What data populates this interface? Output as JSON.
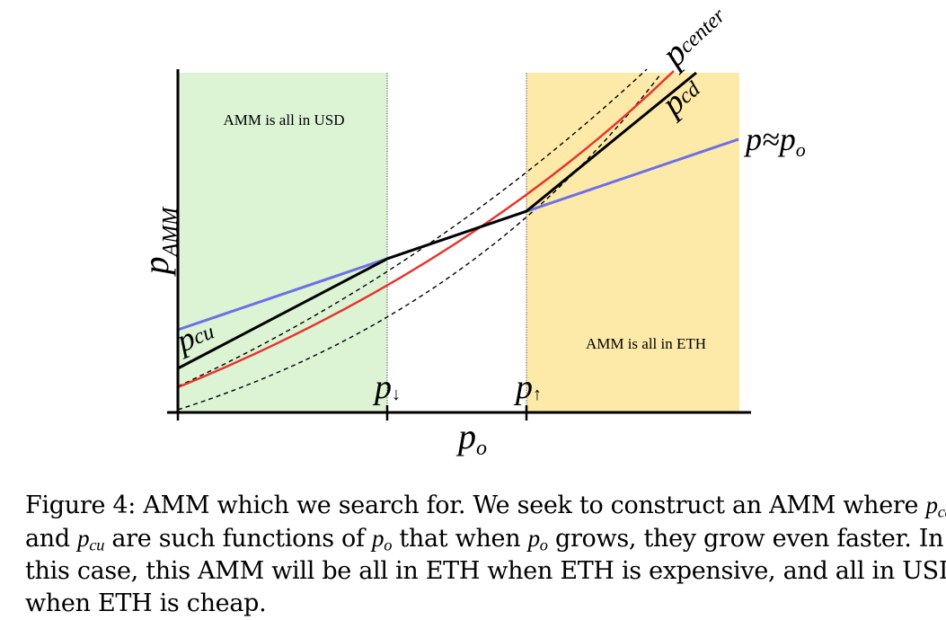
{
  "figure": {
    "region_labels": {
      "usd": "AMM is all in USD",
      "eth": "AMM is all in ETH"
    },
    "curve_labels": {
      "center_base": "p",
      "center_sub": "center",
      "cd_base": "p",
      "cd_sub": "cd",
      "cu_base": "p",
      "cu_sub": "cu",
      "approx": "p≈p",
      "approx_sub": "o"
    },
    "axis": {
      "ylabel_base": "p",
      "ylabel_sub": "AMM",
      "xlabel_base": "p",
      "xlabel_sub": "o",
      "tick_down_base": "p",
      "tick_down_sub": "↓",
      "tick_up_base": "p",
      "tick_up_sub": "↑"
    },
    "colors": {
      "usd_region": "#dcf3d4",
      "eth_region": "#fde9a8",
      "center_curve": "#e8322a",
      "approx_curve": "#6b6fe8",
      "cd_cu_curve": "#000000",
      "bounds_dashed": "#000000"
    }
  },
  "caption": {
    "l1_a": "Figure 4: AMM which we search for. We seek to construct an AMM where ",
    "l1_m_base": "p",
    "l1_m_sub": "cd",
    "l2_a": "and ",
    "l2_m1_base": "p",
    "l2_m1_sub": "cu",
    "l2_b": " are such functions of ",
    "l2_m2": "p",
    "l2_m2_sub": "o",
    "l2_c": " that when ",
    "l2_m3": "p",
    "l2_m3_sub": "o",
    "l2_d": " grows, they grow even faster. In",
    "l3": "this case, this AMM will be all in ETH when ETH is expensive, and all in USD",
    "l4": "when ETH is cheap."
  }
}
